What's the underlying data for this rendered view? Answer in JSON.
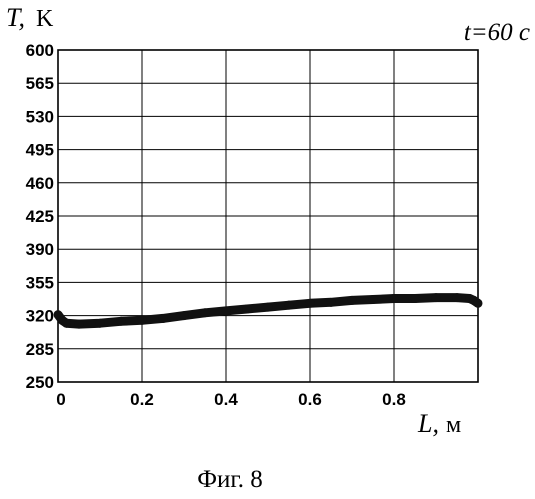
{
  "chart_data": {
    "type": "line",
    "ylabel_symbol": "T,",
    "ylabel_unit": "K",
    "xlabel_symbol": "L,",
    "xlabel_unit": "м",
    "annotation": "t=60 c",
    "caption": "Фиг. 8",
    "xlim": [
      0,
      1
    ],
    "ylim": [
      250,
      600
    ],
    "x_ticks": [
      0,
      0.2,
      0.4,
      0.6,
      0.8
    ],
    "x_tick_labels": [
      "0",
      "0.2",
      "0.4",
      "0.6",
      "0.8"
    ],
    "y_ticks": [
      250,
      285,
      320,
      355,
      390,
      425,
      460,
      495,
      530,
      565,
      600
    ],
    "y_tick_labels": [
      "250",
      "285",
      "320",
      "355",
      "390",
      "425",
      "460",
      "495",
      "530",
      "565",
      "600"
    ],
    "grid": true,
    "series": [
      {
        "x": [
          0,
          0.01,
          0.02,
          0.05,
          0.1,
          0.15,
          0.2,
          0.25,
          0.3,
          0.35,
          0.4,
          0.45,
          0.5,
          0.55,
          0.6,
          0.65,
          0.7,
          0.75,
          0.8,
          0.85,
          0.9,
          0.95,
          0.98,
          0.99,
          1.0
        ],
        "y": [
          321,
          315,
          312,
          311,
          312,
          314,
          315,
          317,
          320,
          323,
          325,
          327,
          329,
          331,
          333,
          334,
          336,
          337,
          338,
          338,
          339,
          339,
          338,
          336,
          333
        ]
      }
    ]
  }
}
